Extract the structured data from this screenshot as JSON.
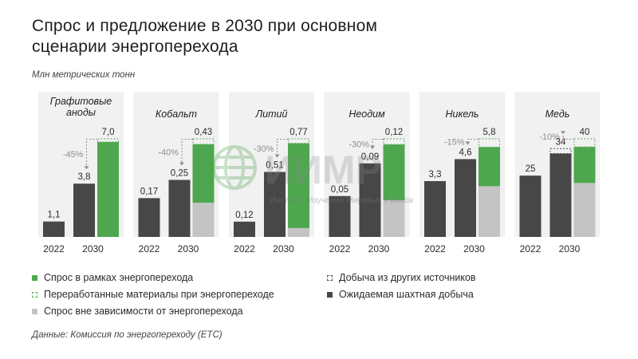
{
  "title_lines": [
    "Спрос и предложение в 2030 при основном",
    "сценарии энергоперехода"
  ],
  "units": "Млн метрических тонн",
  "source": "Данные: Комиссия по энергопереходу (ETC)",
  "watermark": {
    "logo_text": "ИИМР",
    "subtitle": "Институт Изучения Мировых Рынков"
  },
  "colors": {
    "dark": "#474747",
    "green": "#4ea74e",
    "gray": "#c4c4c4",
    "panel_bg": "#f1f1f1",
    "dashed_green": "#5cab5c",
    "dashed_dark": "#555555"
  },
  "legend": {
    "items": [
      {
        "key": "green",
        "label": "Спрос в рамках энергоперехода"
      },
      {
        "key": "green_dashed",
        "label": "Переработанные материалы при энергопереходе"
      },
      {
        "key": "gray",
        "label": "Спрос вне зависимости от энергоперехода"
      },
      {
        "key": "dark_dashed",
        "label": "Добыча из других источников"
      },
      {
        "key": "dark",
        "label": "Ожидаемая шахтная добыча"
      }
    ]
  },
  "chart_data": [
    {
      "type": "bar",
      "title": "Графитовые аноды",
      "categories": [
        "2022",
        "2030",
        ""
      ],
      "labels": [
        "1,1",
        "3,8",
        "7,0"
      ],
      "values": [
        1.1,
        3.8,
        7.0
      ],
      "mine_2022": 1.1,
      "mine_2030": 3.8,
      "demand_total": 7.0,
      "demand_non_transition": 0,
      "recycled": 0,
      "other_sources": 0,
      "reduction_label": "-45%"
    },
    {
      "type": "bar",
      "title": "Кобальт",
      "categories": [
        "2022",
        "2030",
        ""
      ],
      "labels": [
        "0,17",
        "0,25",
        "0,43"
      ],
      "values": [
        0.17,
        0.25,
        0.43
      ],
      "mine_2022": 0.17,
      "mine_2030": 0.25,
      "demand_total": 0.43,
      "demand_non_transition": 0.15,
      "recycled": 0.01,
      "other_sources": 0,
      "reduction_label": "-40%"
    },
    {
      "type": "bar",
      "title": "Литий",
      "categories": [
        "2022",
        "2030",
        ""
      ],
      "labels": [
        "0,12",
        "0,51",
        "0,77"
      ],
      "values": [
        0.12,
        0.51,
        0.77
      ],
      "mine_2022": 0.12,
      "mine_2030": 0.51,
      "demand_total": 0.77,
      "demand_non_transition": 0.07,
      "recycled": 0.01,
      "other_sources": 0,
      "reduction_label": "-30%"
    },
    {
      "type": "bar",
      "title": "Неодим",
      "categories": [
        "2022",
        "2030",
        ""
      ],
      "labels": [
        "0,05",
        "0,09",
        "0,12"
      ],
      "values": [
        0.05,
        0.09,
        0.12
      ],
      "mine_2022": 0.05,
      "mine_2030": 0.09,
      "demand_total": 0.12,
      "demand_non_transition": 0.045,
      "recycled": 0.003,
      "other_sources": 0,
      "reduction_label": "-30%"
    },
    {
      "type": "bar",
      "title": "Никель",
      "categories": [
        "2022",
        "2030",
        ""
      ],
      "labels": [
        "3,3",
        "4,6",
        "5,8"
      ],
      "values": [
        3.3,
        4.6,
        5.8
      ],
      "mine_2022": 3.3,
      "mine_2030": 4.6,
      "demand_total": 5.8,
      "demand_non_transition": 3.0,
      "recycled": 0.3,
      "other_sources": 0,
      "reduction_label": "-15%"
    },
    {
      "type": "bar",
      "title": "Медь",
      "categories": [
        "2022",
        "2030",
        ""
      ],
      "labels": [
        "25",
        "34",
        "40"
      ],
      "values": [
        25,
        34,
        40
      ],
      "mine_2022": 25,
      "mine_2030": 34,
      "demand_total": 40,
      "demand_non_transition": 22,
      "recycled": 2,
      "other_sources": 2,
      "reduction_label": "-10%"
    }
  ]
}
